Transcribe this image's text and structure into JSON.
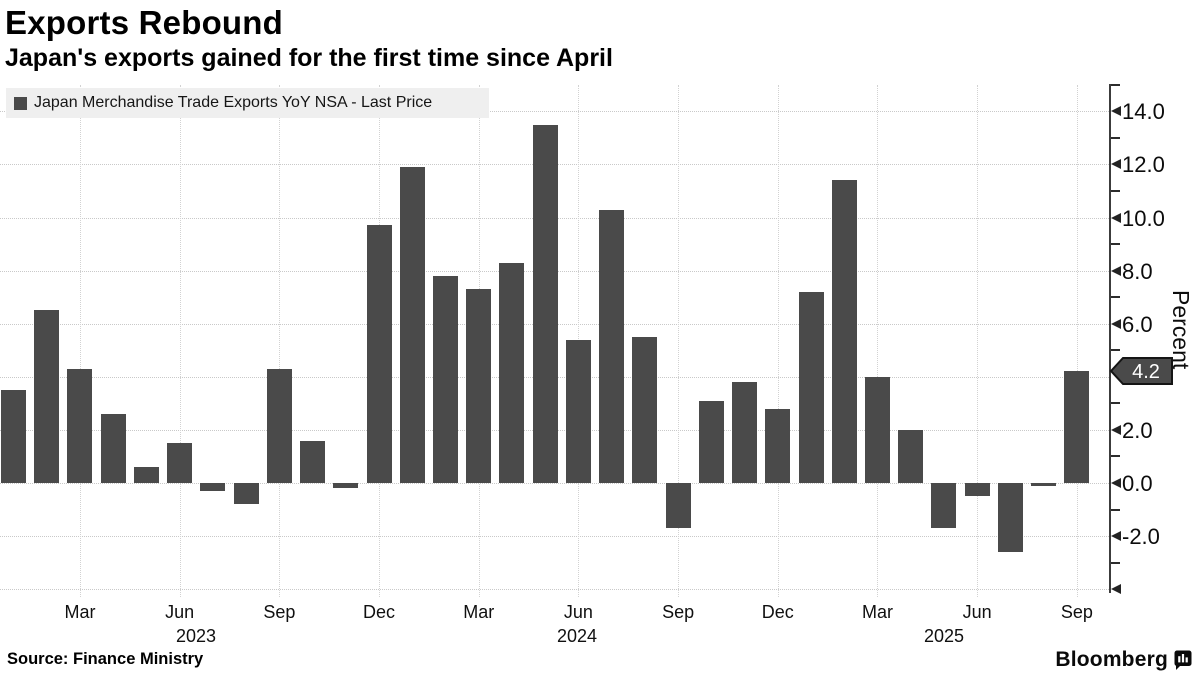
{
  "header": {
    "title": "Exports Rebound",
    "subtitle": "Japan's exports gained for the first time since April"
  },
  "legend": {
    "label": "Japan Merchandise Trade Exports YoY NSA - Last Price",
    "swatch_color": "#4a4a4a"
  },
  "footer": {
    "source": "Source: Finance Ministry",
    "brand": "Bloomberg",
    "brand_icon": "bloomberg-bug-icon"
  },
  "chart_data": {
    "type": "bar",
    "title": "Exports Rebound",
    "subtitle": "Japan's exports gained for the first time since April",
    "series_name": "Japan Merchandise Trade Exports YoY NSA - Last Price",
    "ylabel": "Percent",
    "ylim": [
      -4,
      15
    ],
    "ytick_step": 2,
    "grid": true,
    "legend_position": "top-left",
    "bar_color": "#4a4a4a",
    "categories": [
      "Jan 2023",
      "Feb 2023",
      "Mar 2023",
      "Apr 2023",
      "May 2023",
      "Jun 2023",
      "Jul 2023",
      "Aug 2023",
      "Sep 2023",
      "Oct 2023",
      "Nov 2023",
      "Dec 2023",
      "Jan 2024",
      "Feb 2024",
      "Mar 2024",
      "Apr 2024",
      "May 2024",
      "Jun 2024",
      "Jul 2024",
      "Aug 2024",
      "Sep 2024",
      "Oct 2024",
      "Nov 2024",
      "Dec 2024",
      "Jan 2025",
      "Feb 2025",
      "Mar 2025",
      "Apr 2025",
      "May 2025",
      "Jun 2025",
      "Jul 2025",
      "Aug 2025",
      "Sep 2025"
    ],
    "values": [
      3.5,
      6.5,
      4.3,
      2.6,
      0.6,
      1.5,
      -0.3,
      -0.8,
      4.3,
      1.6,
      -0.2,
      9.7,
      11.9,
      7.8,
      7.3,
      8.3,
      13.5,
      5.4,
      10.3,
      5.5,
      -1.7,
      3.1,
      3.8,
      2.8,
      7.2,
      11.4,
      4.0,
      2.0,
      -1.7,
      -0.5,
      -2.6,
      -0.1,
      4.2
    ],
    "xticks": [
      {
        "month_index": 2,
        "label": "Mar"
      },
      {
        "month_index": 5,
        "label": "Jun"
      },
      {
        "month_index": 8,
        "label": "Sep"
      },
      {
        "month_index": 11,
        "label": "Dec"
      },
      {
        "month_index": 14,
        "label": "Mar"
      },
      {
        "month_index": 17,
        "label": "Jun"
      },
      {
        "month_index": 20,
        "label": "Sep"
      },
      {
        "month_index": 23,
        "label": "Dec"
      },
      {
        "month_index": 26,
        "label": "Mar"
      },
      {
        "month_index": 29,
        "label": "Jun"
      },
      {
        "month_index": 32,
        "label": "Sep"
      }
    ],
    "year_labels": [
      {
        "label": "2023",
        "x": 196
      },
      {
        "label": "2024",
        "x": 577
      },
      {
        "label": "2025",
        "x": 944
      }
    ],
    "yticks_labeled": [
      {
        "value": 14,
        "label": "14.0"
      },
      {
        "value": 12,
        "label": "12.0"
      },
      {
        "value": 10,
        "label": "10.0"
      },
      {
        "value": 8,
        "label": "8.0"
      },
      {
        "value": 6,
        "label": "6.0"
      },
      {
        "value": 2,
        "label": "2.0"
      },
      {
        "value": 0,
        "label": "0.0"
      },
      {
        "value": -2,
        "label": "-2.0"
      }
    ],
    "yticks_arrow_only": [
      -4
    ],
    "yticks_minor": [
      15,
      13,
      11,
      9,
      7,
      5,
      3,
      1,
      -1,
      -3
    ],
    "last_price": {
      "value": 4.2,
      "label": "4.2"
    }
  }
}
